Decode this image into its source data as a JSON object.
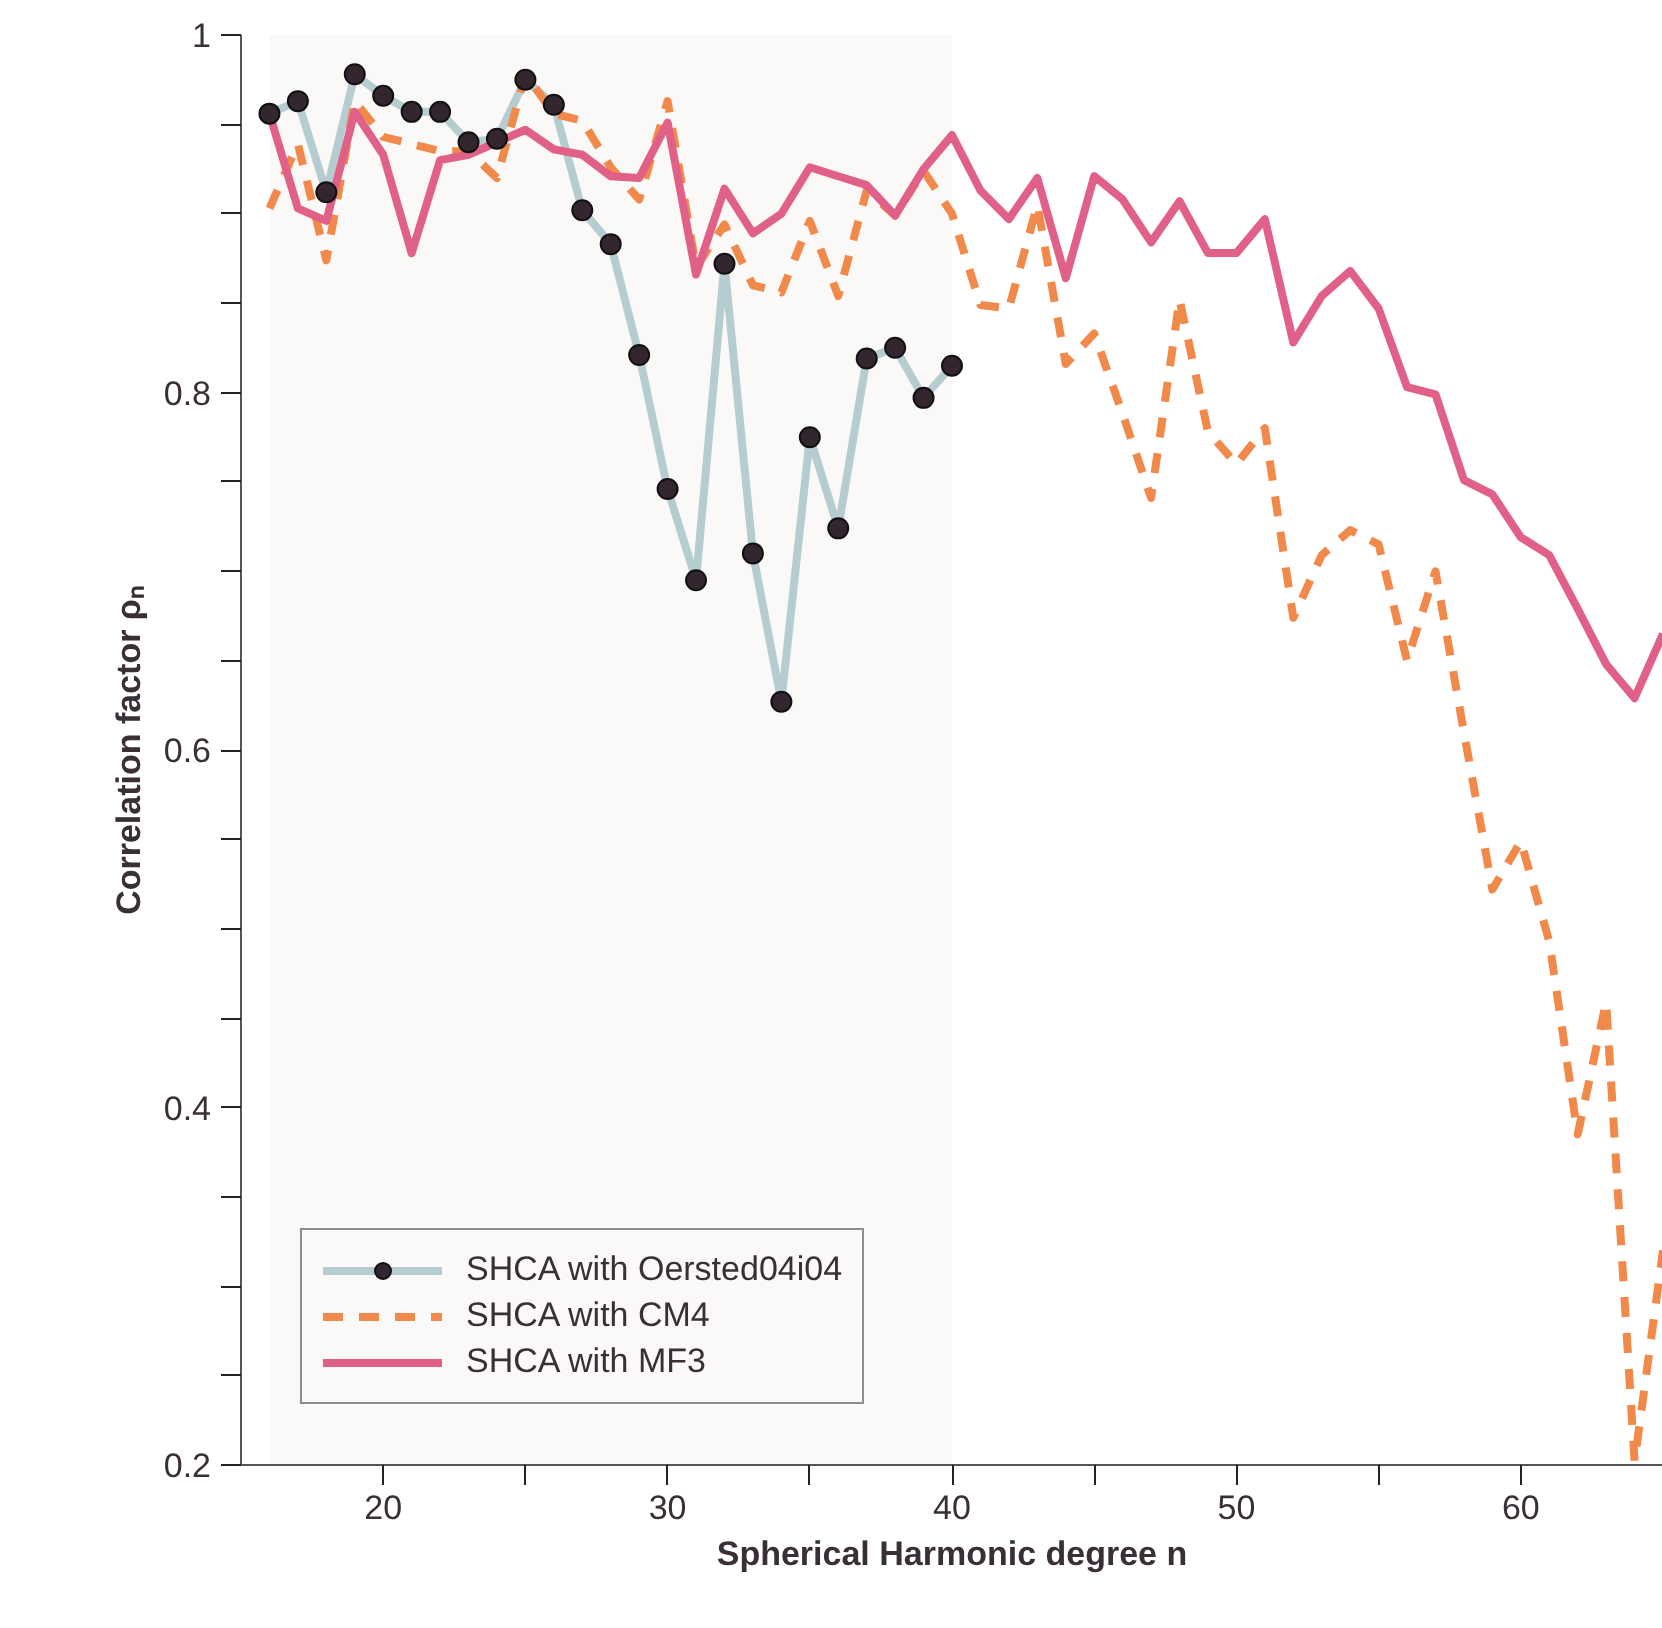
{
  "chart_data": {
    "type": "line",
    "xlabel": "Spherical Harmonic degree n",
    "ylabel": "Correlation factor ρₙ",
    "x": [
      16,
      17,
      18,
      19,
      20,
      21,
      22,
      23,
      24,
      25,
      26,
      27,
      28,
      29,
      30,
      31,
      32,
      33,
      34,
      35,
      36,
      37,
      38,
      39,
      40,
      41,
      42,
      43,
      44,
      45,
      46,
      47,
      48,
      49,
      50,
      51,
      52,
      53,
      54,
      55,
      56,
      57,
      58,
      59,
      60,
      61,
      62,
      63,
      64,
      65
    ],
    "series": [
      {
        "name": "SHCA with Oersted04i04",
        "color": "#b5cdd0",
        "marker": "circle",
        "line_style": "solid",
        "x": [
          16,
          17,
          18,
          19,
          20,
          21,
          22,
          23,
          24,
          25,
          26,
          27,
          28,
          29,
          30,
          31,
          32,
          33,
          34,
          35,
          36,
          37,
          38,
          39,
          40
        ],
        "values": [
          0.956,
          0.963,
          0.912,
          0.978,
          0.966,
          0.957,
          0.957,
          0.94,
          0.942,
          0.975,
          0.961,
          0.902,
          0.883,
          0.821,
          0.746,
          0.695,
          0.872,
          0.71,
          0.627,
          0.775,
          0.724,
          0.819,
          0.825,
          0.797,
          0.815
        ]
      },
      {
        "name": "SHCA with CM4",
        "color": "#f0894a",
        "marker": "none",
        "line_style": "dashed",
        "values": [
          0.903,
          0.939,
          0.874,
          0.963,
          0.943,
          0.939,
          0.935,
          0.935,
          0.92,
          0.978,
          0.956,
          0.952,
          0.926,
          0.908,
          0.963,
          0.87,
          0.894,
          0.86,
          0.856,
          0.896,
          0.854,
          0.913,
          0.899,
          0.924,
          0.9,
          0.849,
          0.847,
          0.905,
          0.816,
          0.833,
          0.788,
          0.741,
          0.852,
          0.778,
          0.76,
          0.78,
          0.674,
          0.709,
          0.723,
          0.715,
          0.65,
          0.7,
          0.61,
          0.522,
          0.549,
          0.493,
          0.385,
          0.459,
          0.202,
          0.32
        ]
      },
      {
        "name": "SHCA with MF3",
        "color": "#e06088",
        "marker": "none",
        "line_style": "solid",
        "values": [
          0.956,
          0.903,
          0.896,
          0.957,
          0.933,
          0.878,
          0.93,
          0.933,
          0.94,
          0.947,
          0.936,
          0.933,
          0.921,
          0.92,
          0.951,
          0.866,
          0.914,
          0.889,
          0.9,
          0.926,
          0.921,
          0.916,
          0.899,
          0.925,
          0.944,
          0.913,
          0.897,
          0.92,
          0.864,
          0.921,
          0.908,
          0.884,
          0.907,
          0.878,
          0.878,
          0.897,
          0.828,
          0.854,
          0.868,
          0.847,
          0.803,
          0.799,
          0.751,
          0.743,
          0.719,
          0.709,
          0.679,
          0.648,
          0.629,
          0.665
        ]
      }
    ],
    "xlim": [
      15,
      65
    ],
    "xticks": [
      20,
      {
        "value": 25,
        "label": null
      },
      30,
      {
        "value": 35,
        "label": null
      },
      40,
      {
        "value": 45,
        "label": null
      },
      50,
      {
        "value": 55,
        "label": null
      },
      60
    ],
    "ylim": [
      0.2,
      1
    ],
    "yticks": [
      0.2,
      {
        "value": 0.25,
        "label": null
      },
      {
        "value": 0.3,
        "label": null
      },
      {
        "value": 0.35,
        "label": null
      },
      0.4,
      {
        "value": 0.45,
        "label": null
      },
      {
        "value": 0.5,
        "label": null
      },
      {
        "value": 0.55,
        "label": null
      },
      0.6,
      {
        "value": 0.65,
        "label": null
      },
      {
        "value": 0.7,
        "label": null
      },
      {
        "value": 0.75,
        "label": null
      },
      0.8,
      {
        "value": 0.85,
        "label": null
      },
      {
        "value": 0.9,
        "label": null
      },
      {
        "value": 0.95,
        "label": null
      },
      1
    ],
    "bands": [
      {
        "axis": "x",
        "from": 16,
        "to": 40,
        "color": "#fbf9f7"
      }
    ],
    "grid": false,
    "legend": "bottom left"
  }
}
